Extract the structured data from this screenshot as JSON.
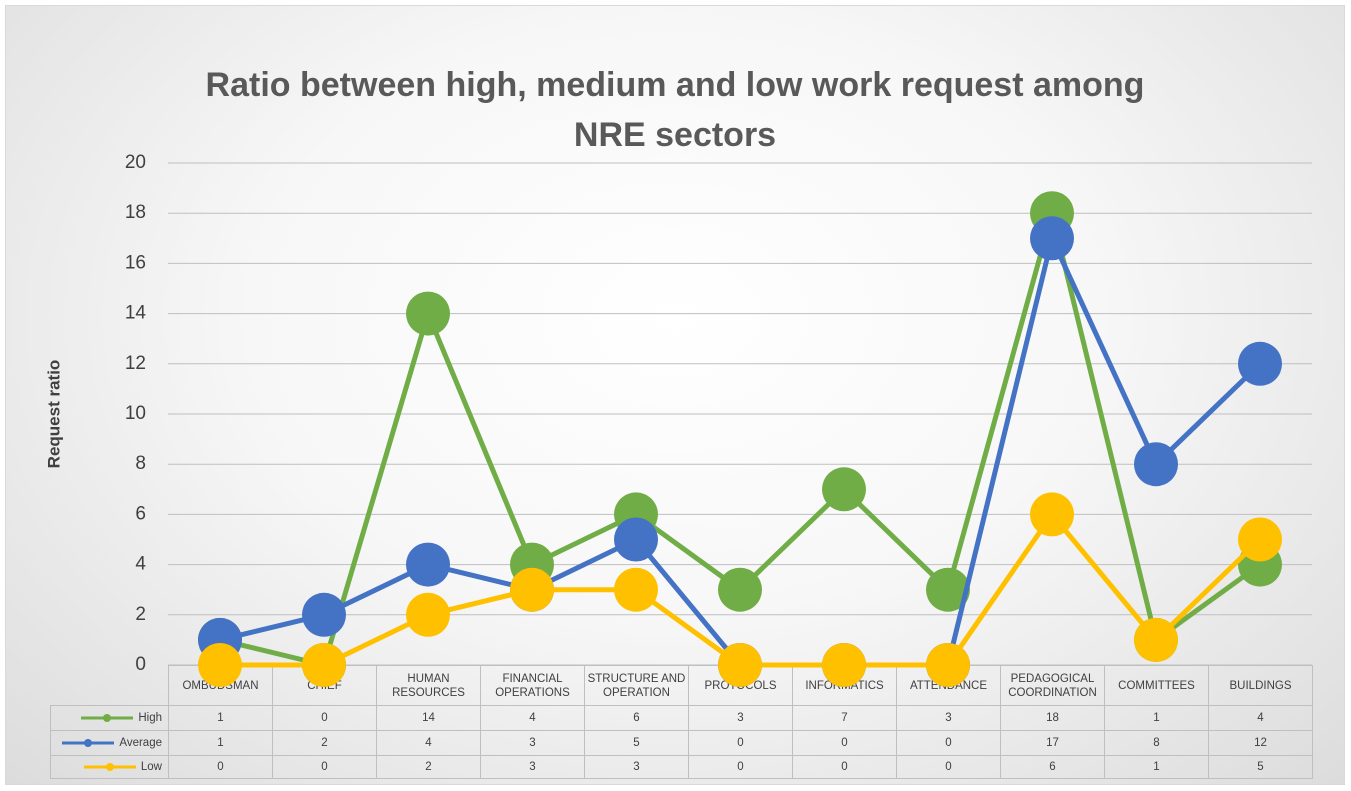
{
  "chart_data": {
    "type": "line",
    "title": "Ratio between high, medium and low work request among NRE sectors",
    "y_label": "Request ratio",
    "categories": [
      "OMBUDSMAN",
      "CHIEF",
      "HUMAN RESOURCES",
      "FINANCIAL OPERATIONS",
      "STRUCTURE AND OPERATION",
      "PROTOCOLS",
      "INFORMATICS",
      "ATTENDANCE",
      "PEDAGOGICAL COORDINATION",
      "COMMITTEES",
      "BUILDINGS"
    ],
    "series": [
      {
        "name": "High",
        "color": "#70ad47",
        "values": [
          1,
          0,
          14,
          4,
          6,
          3,
          7,
          3,
          18,
          1,
          4
        ]
      },
      {
        "name": "Average",
        "color": "#4472c4",
        "values": [
          1,
          2,
          4,
          3,
          5,
          0,
          0,
          0,
          17,
          8,
          12
        ]
      },
      {
        "name": "Low",
        "color": "#ffc000",
        "values": [
          0,
          0,
          2,
          3,
          3,
          0,
          0,
          0,
          6,
          1,
          5
        ]
      }
    ],
    "ylim": [
      0,
      20
    ],
    "yticks": [
      0,
      2,
      4,
      6,
      8,
      10,
      12,
      14,
      16,
      18,
      20
    ],
    "grid": true,
    "data_table": true
  }
}
